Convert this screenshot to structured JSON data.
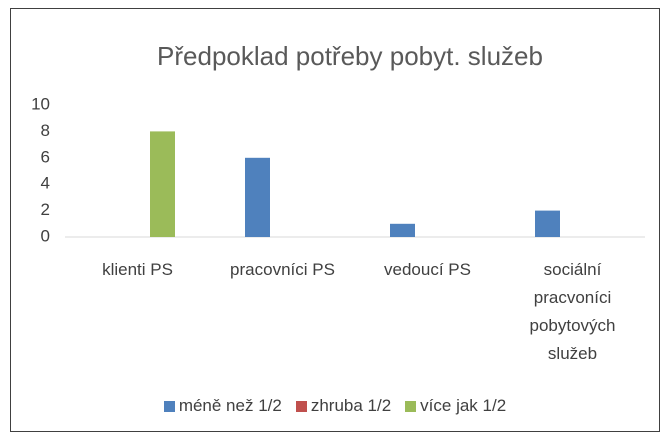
{
  "chart_data": {
    "type": "bar",
    "title": "Předpoklad potřeby pobyt. služeb",
    "categories": [
      "klienti PS",
      "pracovníci PS",
      "vedoucí PS",
      "sociální pracvoníci pobytových služeb"
    ],
    "series": [
      {
        "name": "méně než 1/2",
        "color": "#4f81bd",
        "values": [
          0,
          6,
          1,
          2
        ]
      },
      {
        "name": "zhruba 1/2",
        "color": "#c0504d",
        "values": [
          0,
          0,
          0,
          0
        ]
      },
      {
        "name": "více jak 1/2",
        "color": "#9bbb59",
        "values": [
          8,
          0,
          0,
          0
        ]
      }
    ],
    "ylim": [
      0,
      10
    ],
    "yticks": [
      0,
      2,
      4,
      6,
      8,
      10
    ],
    "grid": false,
    "legend": "bottom"
  }
}
